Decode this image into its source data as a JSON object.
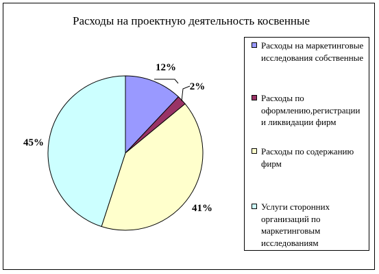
{
  "chart_data": {
    "type": "pie",
    "title": "Расходы на проектную деятельность косвенные",
    "legend_position": "right",
    "slices": [
      {
        "name": "Расходы на маркетинговые исследования собственные",
        "value": 12,
        "label": "12%",
        "color": "#9999ff"
      },
      {
        "name": "Расходы по оформлению,регистрации и ликвидации фирм",
        "value": 2,
        "label": "2%",
        "color": "#993366"
      },
      {
        "name": "Расходы по содержанию фирм",
        "value": 41,
        "label": "41%",
        "color": "#ffffcc"
      },
      {
        "name": "Услуги сторонних организаций по маркетинговым исследованиям",
        "value": 45,
        "label": "45%",
        "color": "#ccffff"
      }
    ]
  },
  "legend": {
    "items": [
      {
        "text": "Расходы на маркетинговые исследования собственные"
      },
      {
        "text": "Расходы по оформлению,регистрации и ликвидации фирм"
      },
      {
        "text": "Расходы по содержанию фирм"
      },
      {
        "text": "Услуги сторонних организаций по маркетинговым исследованиям"
      }
    ]
  }
}
